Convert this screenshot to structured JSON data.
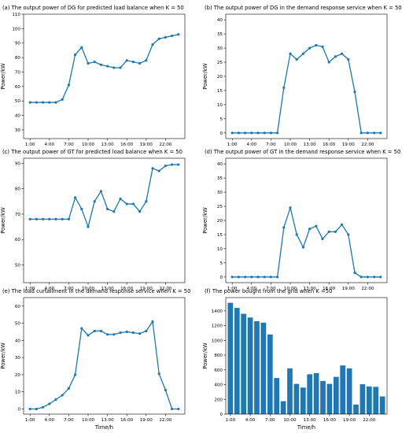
{
  "chart_data": [
    {
      "type": "line",
      "title": "(a) The output power of DG for predicted load balance when K = 50",
      "xlabel": "",
      "ylabel": "Power/kW",
      "categories": [
        "1:00",
        "2:00",
        "3:00",
        "4:00",
        "5:00",
        "6:00",
        "7:00",
        "8:00",
        "9:00",
        "10:00",
        "11:00",
        "12:00",
        "13:00",
        "14:00",
        "15:00",
        "16:00",
        "17:00",
        "18:00",
        "19:00",
        "20:00",
        "21:00",
        "22:00",
        "23:00",
        "24:00"
      ],
      "xticks": [
        "1:00",
        "4:00",
        "7:00",
        "10:00",
        "13:00",
        "16:00",
        "19:00",
        "22:00"
      ],
      "ylim": [
        24,
        110
      ],
      "yticks": [
        30,
        40,
        50,
        60,
        70,
        80,
        90,
        100,
        110
      ],
      "values": [
        49,
        49,
        49,
        49,
        49,
        51,
        61,
        82,
        87,
        76,
        77,
        75,
        74,
        73,
        73,
        78,
        77,
        76,
        78,
        89,
        93,
        94,
        95,
        96
      ],
      "grid": false,
      "color": "#1f77b4"
    },
    {
      "type": "line",
      "title": "(b) The output power of DG in the demand response service when K = 50",
      "xlabel": "",
      "ylabel": "Power/kW",
      "categories": [
        "1:00",
        "2:00",
        "3:00",
        "4:00",
        "5:00",
        "6:00",
        "7:00",
        "8:00",
        "9:00",
        "10:00",
        "11:00",
        "12:00",
        "13:00",
        "14:00",
        "15:00",
        "16:00",
        "17:00",
        "18:00",
        "19:00",
        "20:00",
        "21:00",
        "22:00",
        "23:00",
        "24:00"
      ],
      "xticks": [
        "1:00",
        "4:00",
        "7:00",
        "10:00",
        "13:00",
        "16:00",
        "19:00",
        "22:00"
      ],
      "ylim": [
        -2,
        42
      ],
      "yticks": [
        0,
        5,
        10,
        15,
        20,
        25,
        30,
        35,
        40
      ],
      "values": [
        0,
        0,
        0,
        0,
        0,
        0,
        0,
        0,
        16,
        28,
        26,
        28,
        30,
        31,
        30.5,
        25,
        27,
        28,
        26,
        14.5,
        0,
        0,
        0,
        0
      ],
      "grid": false,
      "color": "#1f77b4"
    },
    {
      "type": "line",
      "title": "(c) The output power of GT for predicted load balance when K = 50",
      "xlabel": "",
      "ylabel": "Power/kW",
      "categories": [
        "1:00",
        "2:00",
        "3:00",
        "4:00",
        "5:00",
        "6:00",
        "7:00",
        "8:00",
        "9:00",
        "10:00",
        "11:00",
        "12:00",
        "13:00",
        "14:00",
        "15:00",
        "16:00",
        "17:00",
        "18:00",
        "19:00",
        "20:00",
        "21:00",
        "22:00",
        "23:00",
        "24:00"
      ],
      "xticks": [
        "1:00",
        "4:00",
        "7:00",
        "10:00",
        "13:00",
        "16:00",
        "19:00",
        "22:00"
      ],
      "ylim": [
        43,
        92
      ],
      "yticks": [
        50,
        60,
        70,
        80,
        90
      ],
      "values": [
        68,
        68,
        68,
        68,
        68,
        68,
        68,
        76.5,
        72,
        65,
        75,
        79,
        72,
        71,
        76,
        74,
        74,
        71,
        75,
        88,
        87,
        89,
        89.5,
        89.5
      ],
      "grid": false,
      "color": "#1f77b4"
    },
    {
      "type": "line",
      "title": "(d) The output power of GT in the demand response service when K = 50",
      "xlabel": "",
      "ylabel": "Power/kW",
      "categories": [
        "1:00",
        "2:00",
        "3:00",
        "4:00",
        "5:00",
        "6:00",
        "7:00",
        "8:00",
        "9:00",
        "10:00",
        "11:00",
        "12:00",
        "13:00",
        "14:00",
        "15:00",
        "16:00",
        "17:00",
        "18:00",
        "19:00",
        "20:00",
        "21:00",
        "22:00",
        "23:00",
        "24:00"
      ],
      "xticks": [
        "1:00",
        "4:00",
        "7:00",
        "10:00",
        "13:00",
        "16:00",
        "19:00",
        "22:00"
      ],
      "ylim": [
        -2,
        42
      ],
      "yticks": [
        0,
        5,
        10,
        15,
        20,
        25,
        30,
        35,
        40
      ],
      "values": [
        0,
        0,
        0,
        0,
        0,
        0,
        0,
        0,
        17.5,
        24.5,
        15,
        10.5,
        17,
        18,
        13.5,
        16,
        16,
        18.5,
        15,
        1.5,
        0,
        0,
        0,
        0
      ],
      "grid": false,
      "color": "#1f77b4"
    },
    {
      "type": "line",
      "title": "(e) The load curtailment in the demand response service when K = 50",
      "xlabel": "Time/h",
      "ylabel": "Power/kW",
      "categories": [
        "1:00",
        "2:00",
        "3:00",
        "4:00",
        "5:00",
        "6:00",
        "7:00",
        "8:00",
        "9:00",
        "10:00",
        "11:00",
        "12:00",
        "13:00",
        "14:00",
        "15:00",
        "16:00",
        "17:00",
        "18:00",
        "19:00",
        "20:00",
        "21:00",
        "22:00",
        "23:00",
        "24:00"
      ],
      "xticks": [
        "1:00",
        "4:00",
        "7:00",
        "10:00",
        "13:00",
        "16:00",
        "19:00",
        "22:00"
      ],
      "ylim": [
        -3,
        65
      ],
      "yticks": [
        0,
        10,
        20,
        30,
        40,
        50,
        60
      ],
      "values": [
        0,
        0,
        1,
        3,
        5.5,
        8,
        12,
        20,
        47,
        43,
        45.5,
        45.5,
        43.5,
        43.5,
        44.5,
        45,
        44.5,
        44,
        45.5,
        51,
        20.5,
        11,
        0,
        0
      ],
      "grid": false,
      "color": "#1f77b4"
    },
    {
      "type": "bar",
      "title": "(f) The power bought from the grid when K =50",
      "xlabel": "Time/h",
      "ylabel": "Power/kW",
      "categories": [
        "1:00",
        "2:00",
        "3:00",
        "4:00",
        "5:00",
        "6:00",
        "7:00",
        "8:00",
        "9:00",
        "10:00",
        "11:00",
        "12:00",
        "13:00",
        "14:00",
        "15:00",
        "16:00",
        "17:00",
        "18:00",
        "19:00",
        "20:00",
        "21:00",
        "22:00",
        "23:00",
        "24:00"
      ],
      "xticks": [
        "1:00",
        "4:00",
        "7:00",
        "10:00",
        "13:00",
        "16:00",
        "19:00",
        "22:00"
      ],
      "ylim": [
        0,
        1580
      ],
      "yticks": [
        0,
        200,
        400,
        600,
        800,
        1000,
        1200,
        1400
      ],
      "values": [
        1510,
        1440,
        1360,
        1310,
        1260,
        1240,
        1080,
        490,
        175,
        620,
        410,
        360,
        540,
        555,
        450,
        410,
        505,
        660,
        620,
        130,
        405,
        375,
        370,
        240
      ],
      "grid": false,
      "color": "#1f77b4"
    }
  ]
}
